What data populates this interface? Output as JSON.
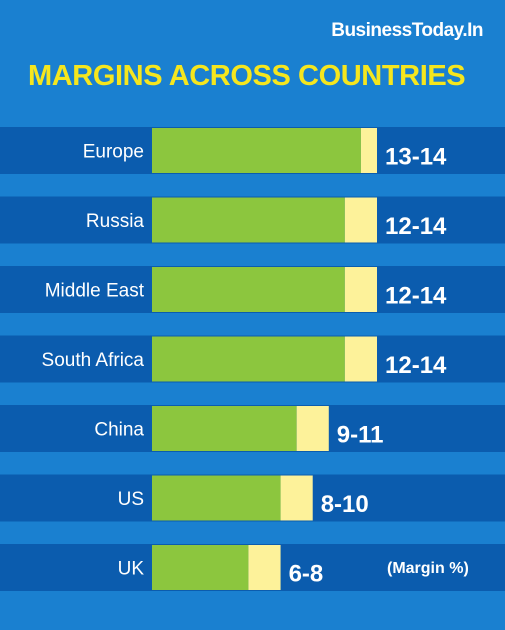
{
  "brand": "BusinessToday.In",
  "colors": {
    "background": "#1a80d0",
    "band": "#0b5cae",
    "low_bar": "#8cc63e",
    "range_bar": "#fdf29a",
    "title": "#f5e61e",
    "text": "#ffffff"
  },
  "chart_data": {
    "type": "bar",
    "orientation": "horizontal",
    "stacked": true,
    "title": "MARGINS ACROSS COUNTRIES",
    "note": "(Margin %)",
    "categories": [
      "Europe",
      "Russia",
      "Middle East",
      "South Africa",
      "China",
      "US",
      "UK"
    ],
    "value_labels": [
      "13-14",
      "12-14",
      "12-14",
      "12-14",
      "9-11",
      "8-10",
      "6-8"
    ],
    "low": [
      13,
      12,
      12,
      12,
      9,
      8,
      6
    ],
    "high": [
      14,
      14,
      14,
      14,
      11,
      10,
      8
    ],
    "xlim": [
      0,
      14
    ],
    "grid": false,
    "legend": "none"
  }
}
